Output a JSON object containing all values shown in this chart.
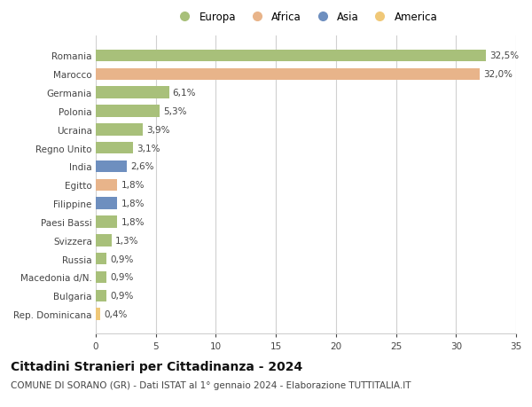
{
  "categories": [
    "Romania",
    "Marocco",
    "Germania",
    "Polonia",
    "Ucraina",
    "Regno Unito",
    "India",
    "Egitto",
    "Filippine",
    "Paesi Bassi",
    "Svizzera",
    "Russia",
    "Macedonia d/N.",
    "Bulgaria",
    "Rep. Dominicana"
  ],
  "values": [
    32.5,
    32.0,
    6.1,
    5.3,
    3.9,
    3.1,
    2.6,
    1.8,
    1.8,
    1.8,
    1.3,
    0.9,
    0.9,
    0.9,
    0.4
  ],
  "labels": [
    "32,5%",
    "32,0%",
    "6,1%",
    "5,3%",
    "3,9%",
    "3,1%",
    "2,6%",
    "1,8%",
    "1,8%",
    "1,8%",
    "1,3%",
    "0,9%",
    "0,9%",
    "0,9%",
    "0,4%"
  ],
  "continent": [
    "Europa",
    "Africa",
    "Europa",
    "Europa",
    "Europa",
    "Europa",
    "Asia",
    "Africa",
    "Asia",
    "Europa",
    "Europa",
    "Europa",
    "Europa",
    "Europa",
    "America"
  ],
  "colors": {
    "Europa": "#a8c07a",
    "Africa": "#e8b48a",
    "Asia": "#6e8fbf",
    "America": "#f0c878"
  },
  "xlim": [
    0,
    35
  ],
  "xticks": [
    0,
    5,
    10,
    15,
    20,
    25,
    30,
    35
  ],
  "title": "Cittadini Stranieri per Cittadinanza - 2024",
  "subtitle": "COMUNE DI SORANO (GR) - Dati ISTAT al 1° gennaio 2024 - Elaborazione TUTTITALIA.IT",
  "background_color": "#ffffff",
  "grid_color": "#d0d0d0",
  "bar_height": 0.65,
  "value_fontsize": 7.5,
  "label_fontsize": 7.5,
  "title_fontsize": 10,
  "subtitle_fontsize": 7.5,
  "legend_order": [
    "Europa",
    "Africa",
    "Asia",
    "America"
  ]
}
